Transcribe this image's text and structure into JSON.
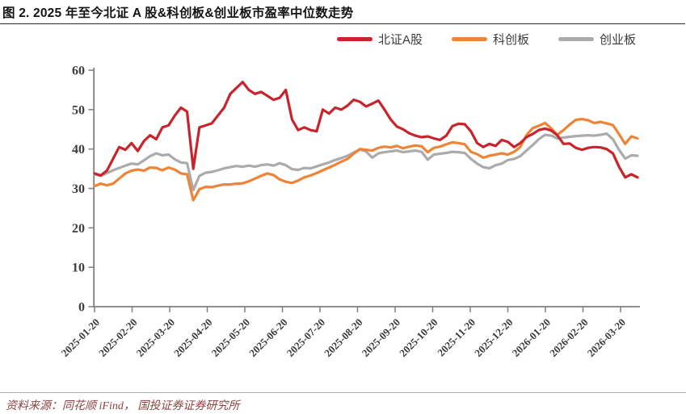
{
  "figure": {
    "title": "图 2. 2025 年至今北证 A 股&科创板&创业板市盈率中位数走势",
    "source_note": "资料来源：同花顺 iFind， 国投证券证券研究所"
  },
  "legend": [
    {
      "label": "北证A股",
      "color": "#c9242c"
    },
    {
      "label": "科创板",
      "color": "#ef8336"
    },
    {
      "label": "创业板",
      "color": "#ababab"
    }
  ],
  "colors": {
    "accent_red": "#c9242c",
    "accent_orange": "#ef8336",
    "accent_gray": "#ababab",
    "axis": "#7f7f7f",
    "tick_text": "#3d3d3d",
    "title_text": "#141414",
    "source_text": "#8a4440"
  },
  "chart_data": {
    "type": "line",
    "title": "2025年至今北证A股&科创板&创业板市盈率中位数走势",
    "xlabel": "",
    "ylabel": "",
    "ylim": [
      0,
      60
    ],
    "yticks": [
      0,
      10,
      20,
      30,
      40,
      50,
      60
    ],
    "grid": false,
    "legend_position": "top",
    "x_tick_labels": [
      "2025-01-20",
      "2025-02-20",
      "2025-03-20",
      "2025-04-20",
      "2025-05-20",
      "2025-06-20",
      "2025-07-20",
      "2025-08-20",
      "2025-09-20",
      "2025-10-20",
      "2025-11-20",
      "2025-12-20",
      "2026-01-20",
      "2026-02-20",
      "2026-03-20"
    ],
    "x_start": "2025-01-20",
    "x_step_days": 5,
    "series": [
      {
        "name": "北证A股",
        "color": "#c9242c",
        "values": [
          33.8,
          33.3,
          34.5,
          37.5,
          40.5,
          39.8,
          41.5,
          39.5,
          42,
          43.5,
          42.5,
          45.5,
          46,
          48.5,
          50.5,
          49.5,
          35,
          45.5,
          46,
          46.5,
          48.5,
          50.5,
          54,
          55.5,
          57,
          55,
          54,
          54.5,
          53.5,
          52.5,
          53,
          55,
          47.5,
          44.8,
          45.5,
          44.8,
          44.5,
          50,
          49,
          50.5,
          50,
          51,
          52.5,
          52,
          50.8,
          51.5,
          52.3,
          50,
          47.5,
          45.7,
          45,
          44,
          43.4,
          43,
          43.2,
          42.7,
          42.3,
          43.4,
          45.8,
          46.4,
          46.3,
          44.5,
          41.5,
          40.5,
          41.3,
          40.8,
          42.3,
          41.8,
          40.5,
          41.5,
          43,
          43.8,
          44.8,
          45.2,
          44.7,
          43.5,
          41.3,
          41.4,
          40.3,
          39.8,
          40.3,
          40.5,
          40.4,
          40,
          38.9,
          35.5,
          32.8,
          33.6,
          32.8
        ]
      },
      {
        "name": "科创板",
        "color": "#ef8336",
        "values": [
          30.6,
          31.2,
          30.8,
          31.2,
          32.5,
          33.8,
          34.5,
          34.8,
          34.5,
          35.3,
          35.2,
          34.6,
          35.3,
          34.8,
          33.8,
          33.6,
          27,
          29.8,
          30.4,
          30.3,
          30.7,
          31,
          31,
          31.2,
          31.3,
          31.8,
          32.5,
          33.2,
          33.8,
          33.4,
          32.3,
          31.7,
          31.4,
          32,
          32.8,
          33.3,
          33.9,
          34.6,
          35.3,
          36,
          36.8,
          37.5,
          38.8,
          40,
          39.8,
          39.6,
          40.3,
          40.6,
          40.4,
          40.8,
          40.2,
          40.6,
          40.9,
          40.7,
          39.2,
          40.3,
          40.6,
          41.2,
          41.7,
          41.5,
          41.2,
          39.3,
          38.7,
          37.8,
          38.3,
          38.6,
          38.9,
          38.6,
          39.3,
          40.5,
          43.5,
          45.3,
          45.9,
          46.6,
          45.3,
          43.6,
          44.8,
          46.2,
          47.4,
          47.6,
          47.3,
          46.6,
          46.9,
          46.5,
          46.1,
          43.8,
          41.3,
          43.2,
          42.7
        ]
      },
      {
        "name": "创业板",
        "color": "#ababab",
        "values": [
          33.6,
          33.2,
          33.9,
          34.6,
          35.2,
          35.8,
          36.3,
          36.1,
          37.1,
          38.2,
          38.9,
          38.4,
          38.6,
          37.4,
          36.6,
          36.4,
          29.6,
          33.2,
          34,
          34.2,
          34.6,
          35.1,
          35.4,
          35.7,
          35.5,
          35.8,
          35.5,
          35.9,
          36.1,
          35.8,
          36.4,
          35.9,
          34.9,
          34.7,
          35.2,
          35.1,
          35.6,
          36.1,
          36.6,
          37.2,
          37.7,
          38.3,
          39.1,
          39.9,
          39.4,
          37.8,
          38.9,
          39.2,
          39.4,
          39.6,
          39.2,
          39.4,
          39.6,
          39.3,
          37.3,
          38.6,
          38.8,
          39,
          39.3,
          39.2,
          39,
          37.5,
          36.3,
          35.4,
          35.1,
          35.9,
          36.3,
          37.2,
          37.5,
          38.2,
          39.6,
          41,
          42.5,
          43.6,
          43.4,
          42.7,
          42.9,
          43.1,
          43.3,
          43.4,
          43.5,
          43.4,
          43.6,
          43.9,
          42.5,
          39.8,
          37.6,
          38.4,
          38.3
        ]
      }
    ]
  }
}
